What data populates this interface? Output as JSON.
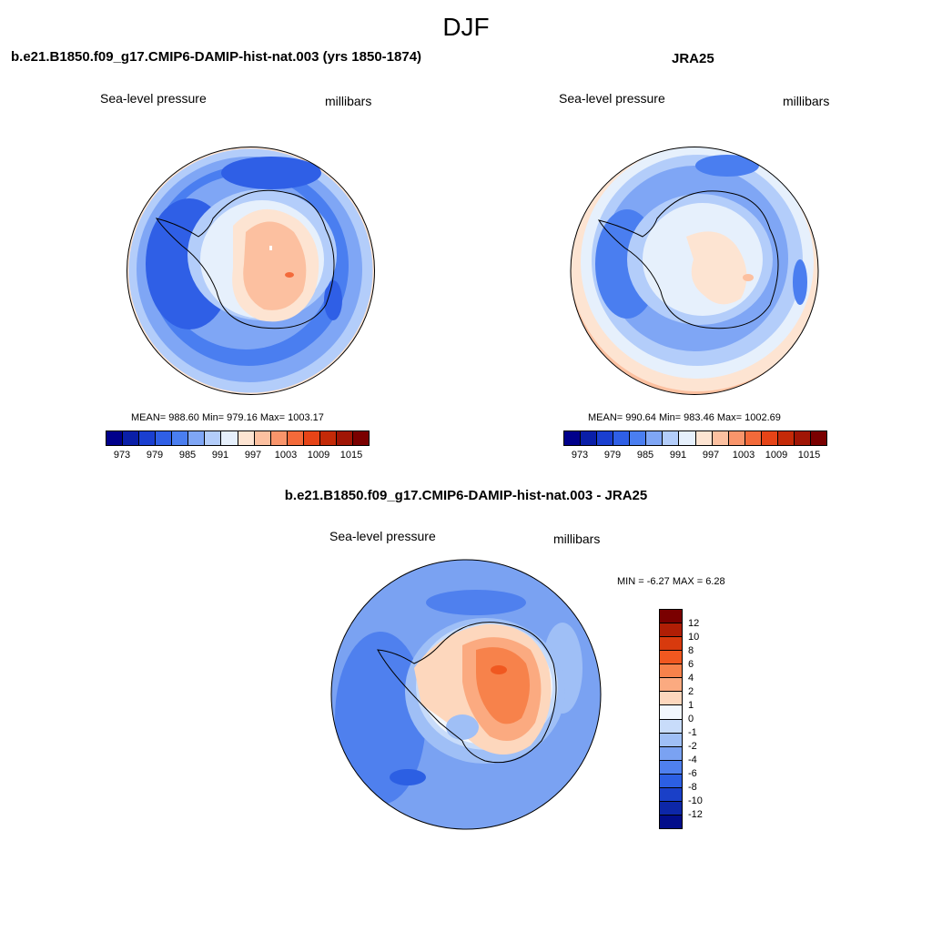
{
  "title": "DJF",
  "panels": {
    "model": {
      "title": "b.e21.B1850.f09_g17.CMIP6-DAMIP-hist-nat.003 (yrs 1850-1874)",
      "field_label": "Sea-level pressure",
      "units": "millibars",
      "stats": "MEAN= 988.60  Min= 979.16  Max= 1003.17",
      "colorbar_ticks": [
        "973",
        "979",
        "985",
        "991",
        "997",
        "1003",
        "1009",
        "1015"
      ]
    },
    "obs": {
      "title": "JRA25",
      "field_label": "Sea-level pressure",
      "units": "millibars",
      "stats": "MEAN= 990.64  Min= 983.46  Max= 1002.69",
      "colorbar_ticks": [
        "973",
        "979",
        "985",
        "991",
        "997",
        "1003",
        "1009",
        "1015"
      ]
    },
    "diff": {
      "title": "b.e21.B1850.f09_g17.CMIP6-DAMIP-hist-nat.003 - JRA25",
      "field_label": "Sea-level pressure",
      "units": "millibars",
      "stats": "MIN =  -6.27 MAX =   6.28",
      "colorbar_ticks": [
        "12",
        "10",
        "8",
        "6",
        "4",
        "2",
        "1",
        "0",
        "-1",
        "-2",
        "-4",
        "-6",
        "-8",
        "-10",
        "-12"
      ]
    }
  },
  "colors": {
    "abs_scale": [
      "#00008b",
      "#0a1fa8",
      "#1a3fd0",
      "#2f5fe6",
      "#4a7ef0",
      "#7fa6f5",
      "#b3cdfa",
      "#e6f0fc",
      "#fde4d2",
      "#fcc0a0",
      "#f9956b",
      "#f36a3a",
      "#e64417",
      "#c42a08",
      "#a01505",
      "#7a0000"
    ],
    "diff_scale": [
      "#7a0000",
      "#b01e05",
      "#d83a0d",
      "#f05820",
      "#f7824b",
      "#fbaa80",
      "#fdd7bd",
      "#f2f7fd",
      "#c8dcfa",
      "#9fbff6",
      "#7aa2f2",
      "#4f80ee",
      "#2c5fe3",
      "#1a40c8",
      "#0d27a8",
      "#020d8a"
    ]
  }
}
